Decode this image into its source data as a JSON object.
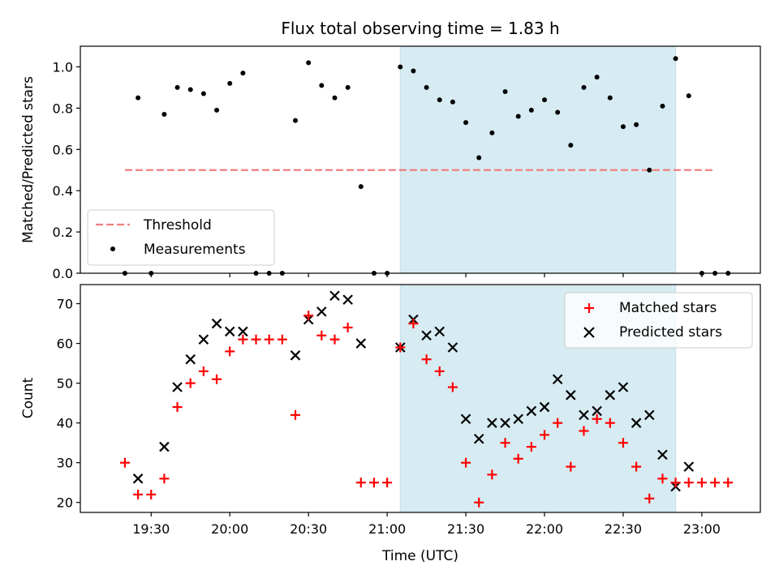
{
  "chart_data": [
    {
      "type": "scatter",
      "title": "Flux total observing time = 1.83 h",
      "ylabel": "Matched/Predicted stars",
      "xlabel": "",
      "ylim": [
        0,
        1.1
      ],
      "yticks": [
        "0.0",
        "0.2",
        "0.4",
        "0.6",
        "0.8",
        "1.0"
      ],
      "shaded_span": {
        "start": "21:05",
        "end": "22:50",
        "color": "#add8e6"
      },
      "threshold": {
        "name": "Threshold",
        "value": 0.5,
        "from": "19:20",
        "to": "23:05",
        "color": "#f08080"
      },
      "series": [
        {
          "name": "Measurements",
          "color": "#000000",
          "x": [
            "19:20",
            "19:25",
            "19:30",
            "19:35",
            "19:40",
            "19:45",
            "19:50",
            "19:55",
            "20:00",
            "20:05",
            "20:10",
            "20:15",
            "20:20",
            "20:25",
            "20:30",
            "20:35",
            "20:40",
            "20:45",
            "20:50",
            "20:55",
            "21:00",
            "21:05",
            "21:10",
            "21:15",
            "21:20",
            "21:25",
            "21:30",
            "21:35",
            "21:40",
            "21:45",
            "21:50",
            "21:55",
            "22:00",
            "22:05",
            "22:10",
            "22:15",
            "22:20",
            "22:25",
            "22:30",
            "22:35",
            "22:40",
            "22:45",
            "22:50",
            "22:55",
            "23:00",
            "23:05",
            "23:10"
          ],
          "values": [
            0.0,
            0.85,
            0.0,
            0.77,
            0.9,
            0.89,
            0.87,
            0.79,
            0.92,
            0.97,
            0.0,
            0.0,
            0.0,
            0.74,
            1.02,
            0.91,
            0.85,
            0.9,
            0.42,
            0.0,
            0.0,
            1.0,
            0.98,
            0.9,
            0.84,
            0.83,
            0.73,
            0.56,
            0.68,
            0.88,
            0.76,
            0.79,
            0.84,
            0.78,
            0.62,
            0.9,
            0.95,
            0.85,
            0.71,
            0.72,
            0.5,
            0.81,
            1.04,
            0.86,
            0.0,
            0.0,
            0.0
          ]
        }
      ],
      "legend": {
        "position": "lower-left",
        "entries": [
          "Threshold",
          "Measurements"
        ]
      }
    },
    {
      "type": "scatter",
      "xlabel": "Time (UTC)",
      "ylabel": "Count",
      "ylim": [
        17.5,
        74.8
      ],
      "yticks": [
        "20",
        "30",
        "40",
        "50",
        "60",
        "70"
      ],
      "xticks": [
        "19:30",
        "20:00",
        "20:30",
        "21:00",
        "21:30",
        "22:00",
        "22:30",
        "23:00"
      ],
      "shaded_span": {
        "start": "21:05",
        "end": "22:50",
        "color": "#add8e6"
      },
      "series": [
        {
          "name": "Matched stars",
          "marker": "plus",
          "color": "#ff0000",
          "x": [
            "19:20",
            "19:25",
            "19:30",
            "19:35",
            "19:40",
            "19:45",
            "19:50",
            "19:55",
            "20:00",
            "20:05",
            "20:10",
            "20:15",
            "20:20",
            "20:25",
            "20:30",
            "20:35",
            "20:40",
            "20:45",
            "20:50",
            "20:55",
            "21:00",
            "21:05",
            "21:10",
            "21:15",
            "21:20",
            "21:25",
            "21:30",
            "21:35",
            "21:40",
            "21:45",
            "21:50",
            "21:55",
            "22:00",
            "22:05",
            "22:10",
            "22:15",
            "22:20",
            "22:25",
            "22:30",
            "22:35",
            "22:40",
            "22:45",
            "22:50",
            "22:55",
            "23:00",
            "23:05",
            "23:10"
          ],
          "values": [
            30,
            22,
            22,
            26,
            44,
            50,
            53,
            51,
            58,
            61,
            61,
            61,
            61,
            42,
            67,
            62,
            61,
            64,
            25,
            25,
            25,
            59,
            65,
            56,
            53,
            49,
            30,
            20,
            27,
            35,
            31,
            34,
            37,
            40,
            29,
            38,
            41,
            40,
            35,
            29,
            21,
            26,
            25,
            25,
            25,
            25,
            25
          ]
        },
        {
          "name": "Predicted stars",
          "marker": "x",
          "color": "#000000",
          "x": [
            "19:25",
            "19:35",
            "19:40",
            "19:45",
            "19:50",
            "19:55",
            "20:00",
            "20:05",
            "20:25",
            "20:30",
            "20:35",
            "20:40",
            "20:45",
            "20:50",
            "21:05",
            "21:10",
            "21:15",
            "21:20",
            "21:25",
            "21:30",
            "21:35",
            "21:40",
            "21:45",
            "21:50",
            "21:55",
            "22:00",
            "22:05",
            "22:10",
            "22:15",
            "22:20",
            "22:25",
            "22:30",
            "22:35",
            "22:40",
            "22:45",
            "22:50",
            "22:55"
          ],
          "values": [
            26,
            34,
            49,
            56,
            61,
            65,
            63,
            63,
            57,
            66,
            68,
            72,
            71,
            60,
            59,
            66,
            62,
            63,
            59,
            41,
            36,
            40,
            40,
            41,
            43,
            44,
            51,
            47,
            42,
            43,
            47,
            49,
            40,
            42,
            32,
            24,
            29
          ]
        }
      ],
      "legend": {
        "position": "top-right",
        "entries": [
          "Matched stars",
          "Predicted stars"
        ]
      }
    }
  ]
}
